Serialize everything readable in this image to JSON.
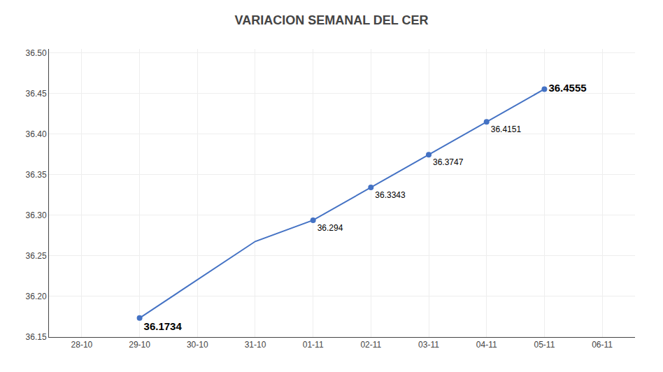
{
  "chart_data": {
    "type": "line",
    "title": "VARIACION SEMANAL DEL CER",
    "categories": [
      "28-10",
      "29-10",
      "30-10",
      "31-10",
      "01-11",
      "02-11",
      "03-11",
      "04-11",
      "05-11",
      "06-11"
    ],
    "series": [
      {
        "type": "line",
        "color": "#4472C4",
        "line_style": "solid",
        "values": [
          null,
          36.1734,
          36.2206,
          36.2678,
          36.294,
          36.3343,
          36.3747,
          36.4151,
          36.4555,
          null
        ]
      },
      {
        "type": "scatter",
        "color": "#4472C4",
        "marker": "circle",
        "data_labels": true,
        "values": [
          null,
          36.1734,
          null,
          null,
          36.294,
          36.3343,
          36.3747,
          36.4151,
          36.4555,
          null
        ],
        "value_labels": [
          null,
          "36.1734",
          null,
          null,
          "36.294",
          "36.3343",
          "36.3747",
          "36.4151",
          "36.4555",
          null
        ]
      }
    ],
    "ylim": [
      36.15,
      36.505
    ],
    "yticks": [
      36.15,
      {
        "value": 36.2,
        "label": "36.20"
      },
      36.25,
      {
        "value": 36.3,
        "label": "36.30"
      },
      36.35,
      {
        "value": 36.4,
        "label": "36.40"
      },
      36.45,
      {
        "value": 36.5,
        "label": "36.50"
      }
    ],
    "grid": true
  }
}
